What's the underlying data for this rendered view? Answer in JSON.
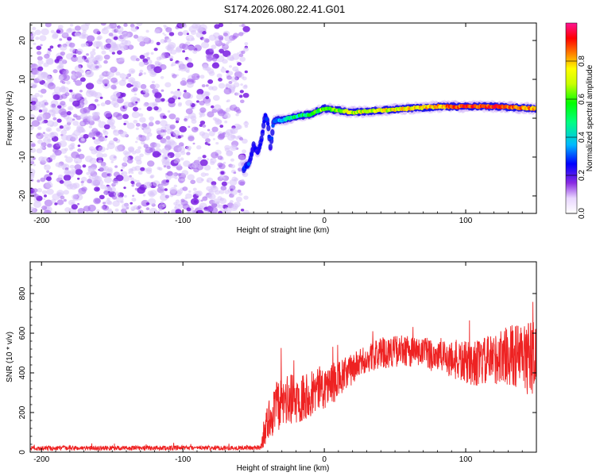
{
  "title": "S174.2026.080.22.41.G01",
  "chart_data": [
    {
      "type": "heatmap",
      "xlabel": "Height of straight line (km)",
      "ylabel": "Frequency (Hz)",
      "xlim": [
        -208,
        150
      ],
      "ylim": [
        -24.5,
        24.5
      ],
      "x_ticks": [
        -200,
        -100,
        0,
        100
      ],
      "x_tick_labels": [
        "-200",
        "-100",
        "0",
        "100"
      ],
      "y_ticks": [
        -20,
        -10,
        0,
        10,
        20
      ],
      "y_tick_labels": [
        "-20",
        "-10",
        "0",
        "10",
        "20"
      ],
      "noise_region_x": [
        -208,
        -55
      ],
      "ridge": {
        "x": [
          -57,
          -53,
          -50,
          -47,
          -44,
          -42,
          -40,
          -38,
          -36,
          -34,
          -30,
          -25,
          -20,
          -10,
          0,
          10,
          20,
          40,
          60,
          80,
          100,
          120,
          150
        ],
        "freq": [
          -13,
          -11.5,
          -7,
          -9,
          -5,
          1,
          -1,
          -8,
          -1,
          -0.5,
          -0.5,
          0,
          0.5,
          1,
          2.5,
          2,
          1.5,
          2,
          2.5,
          3,
          3,
          3,
          2.5
        ],
        "amp": [
          0.35,
          0.3,
          0.25,
          0.25,
          0.3,
          0.3,
          0.3,
          0.25,
          0.35,
          0.35,
          0.4,
          0.45,
          0.5,
          0.55,
          0.65,
          0.6,
          0.7,
          0.7,
          0.75,
          0.8,
          0.95,
          0.95,
          0.85
        ]
      },
      "colorbar": {
        "label": "Normalized spectral amplitude",
        "range": [
          0,
          1
        ],
        "ticks": [
          0.0,
          0.2,
          0.4,
          0.6,
          0.8
        ],
        "tick_labels": [
          "0.0",
          "0.2",
          "0.4",
          "0.6",
          "0.8"
        ],
        "colors": [
          "#ffffff",
          "#8a2be2",
          "#0000ff",
          "#00e5ff",
          "#00ff00",
          "#ffff00",
          "#ff8000",
          "#ff0000",
          "#ff1493"
        ]
      }
    },
    {
      "type": "line",
      "xlabel": "Height of straight line (km)",
      "ylabel": "SNR (10 * v/v)",
      "xlim": [
        -208,
        150
      ],
      "ylim": [
        0,
        960
      ],
      "x_ticks": [
        -200,
        -100,
        0,
        100
      ],
      "x_tick_labels": [
        "-200",
        "-100",
        "0",
        "100"
      ],
      "y_ticks": [
        0,
        200,
        400,
        600,
        800
      ],
      "y_tick_labels": [
        "0",
        "200",
        "400",
        "600",
        "800"
      ],
      "series_color": "#ee2222",
      "envelope": {
        "x": [
          -208,
          -45,
          -42,
          -35,
          -30,
          -20,
          -10,
          0,
          10,
          20,
          30,
          40,
          50,
          60,
          70,
          80,
          90,
          100,
          110,
          120,
          130,
          140,
          150
        ],
        "mean": [
          20,
          22,
          120,
          220,
          250,
          270,
          300,
          330,
          360,
          420,
          470,
          500,
          510,
          510,
          500,
          490,
          470,
          450,
          450,
          470,
          490,
          480,
          470
        ],
        "spread": [
          12,
          12,
          90,
          130,
          130,
          130,
          120,
          110,
          100,
          80,
          70,
          80,
          80,
          80,
          80,
          90,
          100,
          110,
          120,
          130,
          150,
          180,
          200
        ]
      }
    }
  ]
}
